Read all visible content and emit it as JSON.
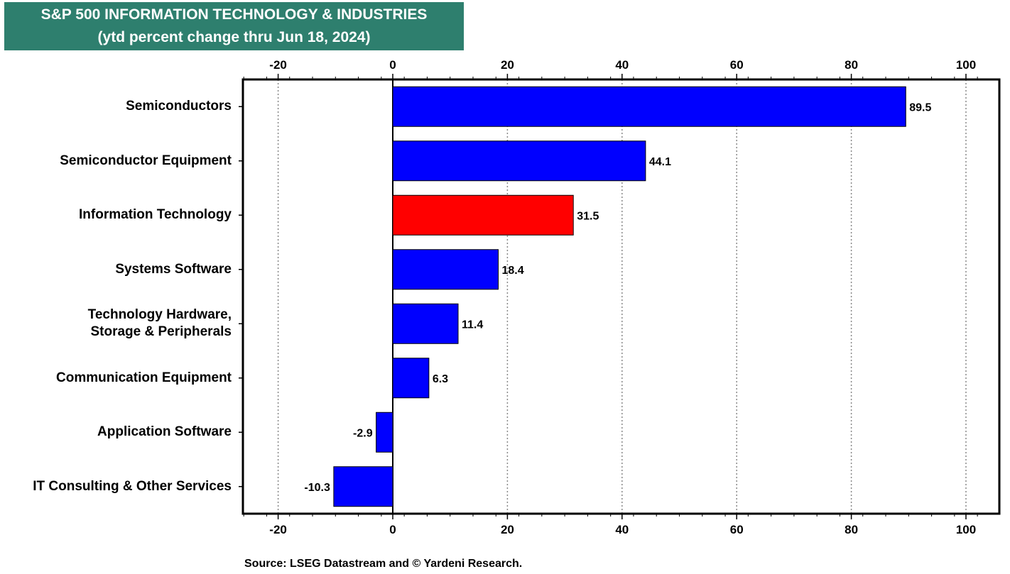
{
  "header": {
    "title": "S&P 500 INFORMATION TECHNOLOGY & INDUSTRIES",
    "subtitle": "(ytd percent change thru Jun 18, 2024)"
  },
  "source": "Source: LSEG Datastream and © Yardeni Research.",
  "chart_data": {
    "type": "bar",
    "orientation": "horizontal",
    "title": "S&P 500 INFORMATION TECHNOLOGY & INDUSTRIES",
    "subtitle": "(ytd percent change thru Jun 18, 2024)",
    "categories": [
      "Semiconductors",
      "Semiconductor Equipment",
      "Information Technology",
      "Systems Software",
      "Technology Hardware, Storage & Peripherals",
      "Communication Equipment",
      "Application Software",
      "IT Consulting & Other Services"
    ],
    "category_label_lines": [
      [
        "Semiconductors"
      ],
      [
        "Semiconductor Equipment"
      ],
      [
        "Information Technology"
      ],
      [
        "Systems Software"
      ],
      [
        "Technology Hardware,",
        "Storage & Peripherals"
      ],
      [
        "Communication Equipment"
      ],
      [
        "Application Software"
      ],
      [
        "IT Consulting & Other Services"
      ]
    ],
    "values": [
      89.5,
      44.1,
      31.5,
      18.4,
      11.4,
      6.3,
      -2.9,
      -10.3
    ],
    "value_labels": [
      "89.5",
      "44.1",
      "31.5",
      "18.4",
      "11.4",
      "6.3",
      "-2.9",
      "-10.3"
    ],
    "bar_colors": [
      "#0000ff",
      "#0000ff",
      "#ff0000",
      "#0000ff",
      "#0000ff",
      "#0000ff",
      "#0000ff",
      "#0000ff"
    ],
    "xlim": [
      -26,
      104
    ],
    "xticks": [
      -20,
      0,
      20,
      40,
      60,
      80,
      100
    ],
    "xtick_labels": [
      "-20",
      "0",
      "20",
      "40",
      "60",
      "80",
      "100"
    ],
    "minor_tick_step": 4,
    "grid": "vertical dotted",
    "xaxis_top_and_bottom": true,
    "colors": {
      "title_bg": "#2e7f6e",
      "title_text": "#ffffff",
      "positive_bar": "#0000ff",
      "highlight_bar": "#ff0000"
    }
  }
}
